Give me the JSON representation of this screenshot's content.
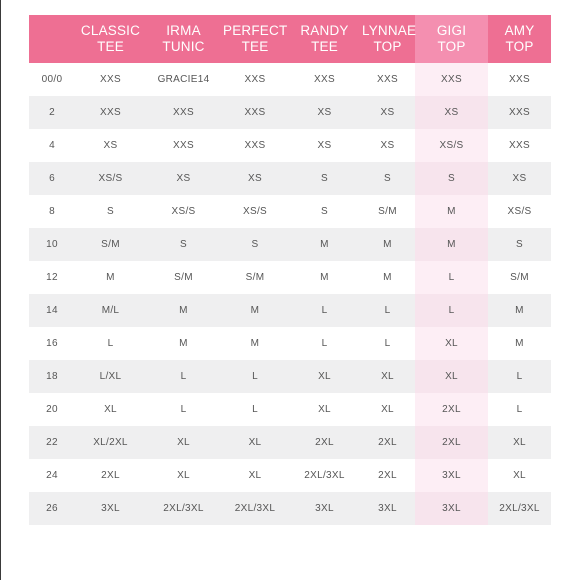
{
  "colors": {
    "header_pink": "#ee6f93",
    "highlight_header_pink": "#f48fb0",
    "highlight_column_light": "#fdeef5",
    "highlight_column_shaded": "#f7e4ed",
    "row_shaded": "#efeff0",
    "text": "#555555"
  },
  "columns": [
    {
      "line1": "",
      "line2": ""
    },
    {
      "line1": "CLASSIC",
      "line2": "TEE"
    },
    {
      "line1": "IRMA",
      "line2": "TUNIC"
    },
    {
      "line1": "PERFECT",
      "line2": "TEE"
    },
    {
      "line1": "RANDY",
      "line2": "TEE"
    },
    {
      "line1": "LYNNAE",
      "line2": "TOP"
    },
    {
      "line1": "GIGI",
      "line2": "TOP"
    },
    {
      "line1": "AMY",
      "line2": "TOP"
    }
  ],
  "highlighted_column": "GIGI TOP",
  "rows": [
    [
      "00/0",
      "XXS",
      "GRACIE14",
      "XXS",
      "XXS",
      "XXS",
      "XXS",
      "XXS"
    ],
    [
      "2",
      "XXS",
      "XXS",
      "XXS",
      "XS",
      "XS",
      "XS",
      "XXS"
    ],
    [
      "4",
      "XS",
      "XXS",
      "XXS",
      "XS",
      "XS",
      "XS/S",
      "XXS"
    ],
    [
      "6",
      "XS/S",
      "XS",
      "XS",
      "S",
      "S",
      "S",
      "XS"
    ],
    [
      "8",
      "S",
      "XS/S",
      "XS/S",
      "S",
      "S/M",
      "M",
      "XS/S"
    ],
    [
      "10",
      "S/M",
      "S",
      "S",
      "M",
      "M",
      "M",
      "S"
    ],
    [
      "12",
      "M",
      "S/M",
      "S/M",
      "M",
      "M",
      "L",
      "S/M"
    ],
    [
      "14",
      "M/L",
      "M",
      "M",
      "L",
      "L",
      "L",
      "M"
    ],
    [
      "16",
      "L",
      "M",
      "M",
      "L",
      "L",
      "XL",
      "M"
    ],
    [
      "18",
      "L/XL",
      "L",
      "L",
      "XL",
      "XL",
      "XL",
      "L"
    ],
    [
      "20",
      "XL",
      "L",
      "L",
      "XL",
      "XL",
      "2XL",
      "L"
    ],
    [
      "22",
      "XL/2XL",
      "XL",
      "XL",
      "2XL",
      "2XL",
      "2XL",
      "XL"
    ],
    [
      "24",
      "2XL",
      "XL",
      "XL",
      "2XL/3XL",
      "2XL",
      "3XL",
      "XL"
    ],
    [
      "26",
      "3XL",
      "2XL/3XL",
      "2XL/3XL",
      "3XL",
      "3XL",
      "3XL",
      "2XL/3XL"
    ]
  ]
}
